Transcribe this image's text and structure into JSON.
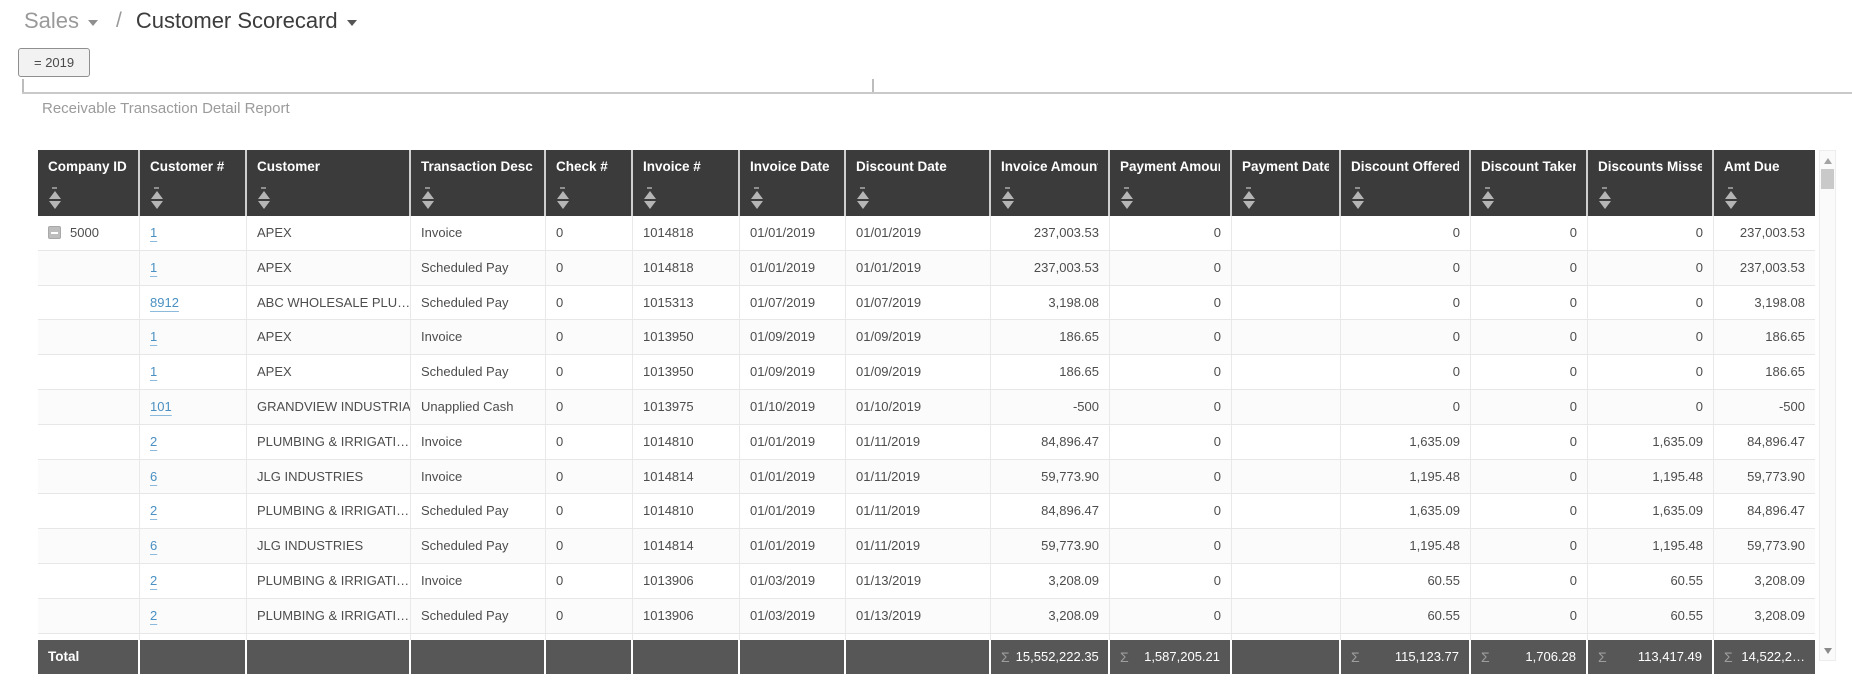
{
  "breadcrumb": {
    "parent": "Sales",
    "separator": "/",
    "current": "Customer Scorecard"
  },
  "filter_chip": "= 2019",
  "report": {
    "title": "Receivable Transaction Detail Report"
  },
  "colors": {
    "header_bg": "#3b3b3b",
    "total_bg": "#575757",
    "link": "#4a90c2",
    "header_text": "#ffffff"
  },
  "table": {
    "columns": [
      {
        "key": "company_id",
        "label": "Company ID"
      },
      {
        "key": "customer_num",
        "label": "Customer #"
      },
      {
        "key": "customer",
        "label": "Customer"
      },
      {
        "key": "transaction_desc",
        "label": "Transaction Desc"
      },
      {
        "key": "check_num",
        "label": "Check #"
      },
      {
        "key": "invoice_num",
        "label": "Invoice #"
      },
      {
        "key": "invoice_date",
        "label": "Invoice Date"
      },
      {
        "key": "discount_date",
        "label": "Discount Date"
      },
      {
        "key": "invoice_amount",
        "label": "Invoice Amount"
      },
      {
        "key": "payment_amount",
        "label": "Payment Amount"
      },
      {
        "key": "payment_date",
        "label": "Payment Date"
      },
      {
        "key": "discount_offered",
        "label": "Discount Offered"
      },
      {
        "key": "discount_taken",
        "label": "Discount Taken"
      },
      {
        "key": "discounts_missed",
        "label": "Discounts Missed"
      },
      {
        "key": "amt_due",
        "label": "Amt Due"
      }
    ],
    "rows": [
      {
        "company_id": "5000",
        "collapse": true,
        "customer_num": "1",
        "customer": "APEX",
        "transaction_desc": "Invoice",
        "check_num": "0",
        "invoice_num": "1014818",
        "invoice_date": "01/01/2019",
        "discount_date": "01/01/2019",
        "invoice_amount": "237,003.53",
        "payment_amount": "0",
        "payment_date": "",
        "discount_offered": "0",
        "discount_taken": "0",
        "discounts_missed": "0",
        "amt_due": "237,003.53"
      },
      {
        "company_id": "",
        "customer_num": "1",
        "customer": "APEX",
        "transaction_desc": "Scheduled Pay",
        "check_num": "0",
        "invoice_num": "1014818",
        "invoice_date": "01/01/2019",
        "discount_date": "01/01/2019",
        "invoice_amount": "237,003.53",
        "payment_amount": "0",
        "payment_date": "",
        "discount_offered": "0",
        "discount_taken": "0",
        "discounts_missed": "0",
        "amt_due": "237,003.53"
      },
      {
        "company_id": "",
        "customer_num": "8912",
        "customer": "ABC WHOLESALE PLU…",
        "transaction_desc": "Scheduled Pay",
        "check_num": "0",
        "invoice_num": "1015313",
        "invoice_date": "01/07/2019",
        "discount_date": "01/07/2019",
        "invoice_amount": "3,198.08",
        "payment_amount": "0",
        "payment_date": "",
        "discount_offered": "0",
        "discount_taken": "0",
        "discounts_missed": "0",
        "amt_due": "3,198.08"
      },
      {
        "company_id": "",
        "customer_num": "1",
        "customer": "APEX",
        "transaction_desc": "Invoice",
        "check_num": "0",
        "invoice_num": "1013950",
        "invoice_date": "01/09/2019",
        "discount_date": "01/09/2019",
        "invoice_amount": "186.65",
        "payment_amount": "0",
        "payment_date": "",
        "discount_offered": "0",
        "discount_taken": "0",
        "discounts_missed": "0",
        "amt_due": "186.65"
      },
      {
        "company_id": "",
        "customer_num": "1",
        "customer": "APEX",
        "transaction_desc": "Scheduled Pay",
        "check_num": "0",
        "invoice_num": "1013950",
        "invoice_date": "01/09/2019",
        "discount_date": "01/09/2019",
        "invoice_amount": "186.65",
        "payment_amount": "0",
        "payment_date": "",
        "discount_offered": "0",
        "discount_taken": "0",
        "discounts_missed": "0",
        "amt_due": "186.65"
      },
      {
        "company_id": "",
        "customer_num": "101",
        "customer": "GRANDVIEW INDUSTRIAL",
        "transaction_desc": "Unapplied Cash",
        "check_num": "0",
        "invoice_num": "1013975",
        "invoice_date": "01/10/2019",
        "discount_date": "01/10/2019",
        "invoice_amount": "-500",
        "payment_amount": "0",
        "payment_date": "",
        "discount_offered": "0",
        "discount_taken": "0",
        "discounts_missed": "0",
        "amt_due": "-500"
      },
      {
        "company_id": "",
        "customer_num": "2",
        "customer": "PLUMBING & IRRIGATI…",
        "transaction_desc": "Invoice",
        "check_num": "0",
        "invoice_num": "1014810",
        "invoice_date": "01/01/2019",
        "discount_date": "01/11/2019",
        "invoice_amount": "84,896.47",
        "payment_amount": "0",
        "payment_date": "",
        "discount_offered": "1,635.09",
        "discount_taken": "0",
        "discounts_missed": "1,635.09",
        "amt_due": "84,896.47"
      },
      {
        "company_id": "",
        "customer_num": "6",
        "customer": "JLG INDUSTRIES",
        "transaction_desc": "Invoice",
        "check_num": "0",
        "invoice_num": "1014814",
        "invoice_date": "01/01/2019",
        "discount_date": "01/11/2019",
        "invoice_amount": "59,773.90",
        "payment_amount": "0",
        "payment_date": "",
        "discount_offered": "1,195.48",
        "discount_taken": "0",
        "discounts_missed": "1,195.48",
        "amt_due": "59,773.90"
      },
      {
        "company_id": "",
        "customer_num": "2",
        "customer": "PLUMBING & IRRIGATI…",
        "transaction_desc": "Scheduled Pay",
        "check_num": "0",
        "invoice_num": "1014810",
        "invoice_date": "01/01/2019",
        "discount_date": "01/11/2019",
        "invoice_amount": "84,896.47",
        "payment_amount": "0",
        "payment_date": "",
        "discount_offered": "1,635.09",
        "discount_taken": "0",
        "discounts_missed": "1,635.09",
        "amt_due": "84,896.47"
      },
      {
        "company_id": "",
        "customer_num": "6",
        "customer": "JLG INDUSTRIES",
        "transaction_desc": "Scheduled Pay",
        "check_num": "0",
        "invoice_num": "1014814",
        "invoice_date": "01/01/2019",
        "discount_date": "01/11/2019",
        "invoice_amount": "59,773.90",
        "payment_amount": "0",
        "payment_date": "",
        "discount_offered": "1,195.48",
        "discount_taken": "0",
        "discounts_missed": "1,195.48",
        "amt_due": "59,773.90"
      },
      {
        "company_id": "",
        "customer_num": "2",
        "customer": "PLUMBING & IRRIGATI…",
        "transaction_desc": "Invoice",
        "check_num": "0",
        "invoice_num": "1013906",
        "invoice_date": "01/03/2019",
        "discount_date": "01/13/2019",
        "invoice_amount": "3,208.09",
        "payment_amount": "0",
        "payment_date": "",
        "discount_offered": "60.55",
        "discount_taken": "0",
        "discounts_missed": "60.55",
        "amt_due": "3,208.09"
      },
      {
        "company_id": "",
        "customer_num": "2",
        "customer": "PLUMBING & IRRIGATI…",
        "transaction_desc": "Scheduled Pay",
        "check_num": "0",
        "invoice_num": "1013906",
        "invoice_date": "01/03/2019",
        "discount_date": "01/13/2019",
        "invoice_amount": "3,208.09",
        "payment_amount": "0",
        "payment_date": "",
        "discount_offered": "60.55",
        "discount_taken": "0",
        "discounts_missed": "60.55",
        "amt_due": "3,208.09"
      }
    ],
    "total": {
      "label": "Total",
      "sums": {
        "invoice_amount": "15,552,222.35",
        "payment_amount": "1,587,205.21",
        "discount_offered": "115,123.77",
        "discount_taken": "1,706.28",
        "discounts_missed": "113,417.49",
        "amt_due": "14,522,2…"
      }
    }
  }
}
